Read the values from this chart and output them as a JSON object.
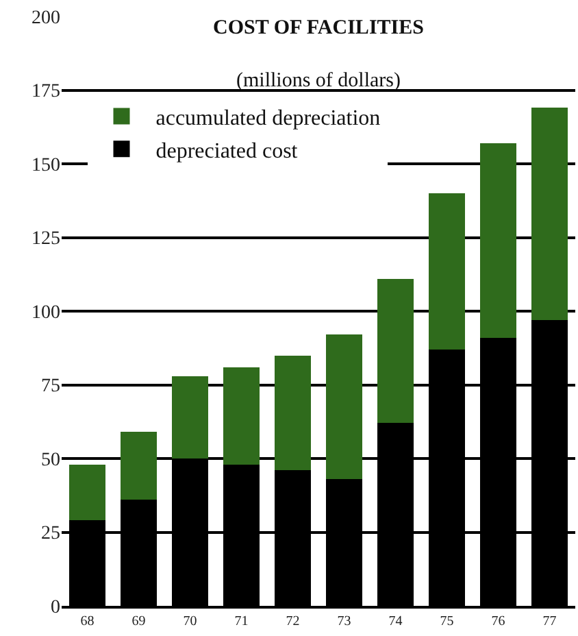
{
  "chart_data": {
    "type": "bar",
    "title": "COST OF FACILITIES",
    "subtitle": "(millions of dollars)",
    "categories": [
      "68",
      "69",
      "70",
      "71",
      "72",
      "73",
      "74",
      "75",
      "76",
      "77"
    ],
    "stacked": true,
    "series": [
      {
        "name": "depreciated cost",
        "color": "#000000",
        "values": [
          29,
          36,
          50,
          48,
          46,
          43,
          62,
          87,
          91,
          97
        ]
      },
      {
        "name": "accumulated depreciation",
        "color": "#2f6b1c",
        "values": [
          19,
          23,
          28,
          33,
          39,
          49,
          49,
          53,
          66,
          72
        ]
      }
    ],
    "ylim": [
      0,
      200
    ],
    "yticks": [
      0,
      25,
      50,
      75,
      100,
      125,
      150,
      175,
      200
    ],
    "grid": "y",
    "legend": "top left"
  }
}
